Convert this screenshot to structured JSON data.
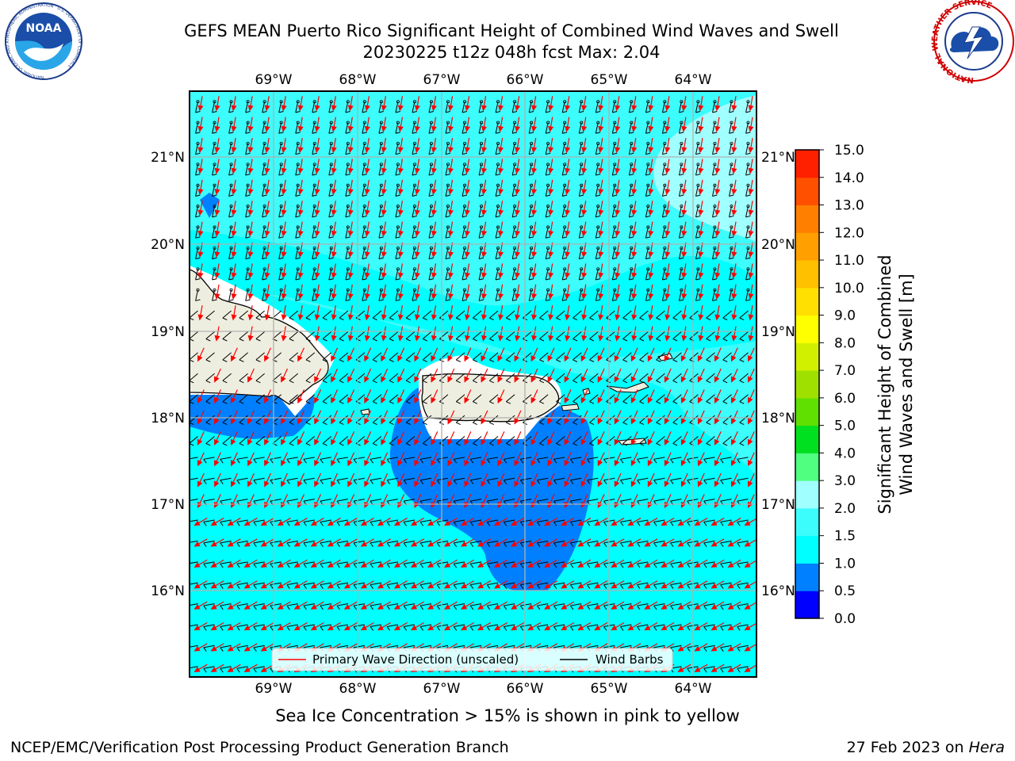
{
  "title": {
    "line1": "GEFS MEAN Puerto Rico Significant Height of Combined Wind Waves and Swell",
    "line2": "20230225 t12z 048h fcst   Max: 2.04"
  },
  "logos": {
    "left": {
      "name": "NOAA",
      "ring_text": "NATIONAL OCEANIC AND ATMOSPHERIC ADMINISTRATION · U.S. DEPARTMENT OF COMMERCE"
    },
    "right": {
      "ring_text": "NATIONAL WEATHER SERVICE"
    }
  },
  "map": {
    "lon_labels": [
      "69°W",
      "68°W",
      "67°W",
      "66°W",
      "65°W",
      "64°W"
    ],
    "lat_labels": [
      "21°N",
      "20°N",
      "19°N",
      "18°N",
      "17°N",
      "16°N"
    ],
    "lon_range": [
      -70,
      -63.25
    ],
    "lat_range": [
      15.0,
      21.75
    ],
    "grid": true,
    "colors": {
      "land": "#eeeee0",
      "ocean_1_1_5": "#00ffff",
      "ocean_1_5_2": "#3cfcfc",
      "ocean_2_3": "#a0ffff",
      "ocean_0_5_1": "#0080ff",
      "ocean_0_0_5": "#ffffff",
      "arrow": "#ff0000",
      "barb": "#000000"
    }
  },
  "legend": {
    "items": [
      {
        "label": "Primary Wave Direction (unscaled)",
        "color": "#ff0000"
      },
      {
        "label": "Wind Barbs",
        "color": "#000000"
      }
    ]
  },
  "colorbar": {
    "label_line1": "Significant Height of Combined",
    "label_line2": "Wind Waves and Swell [m]",
    "ticks": [
      "0.0",
      "0.5",
      "1.0",
      "1.5",
      "2.0",
      "3.0",
      "4.0",
      "5.0",
      "6.0",
      "7.0",
      "8.0",
      "9.0",
      "10.0",
      "11.0",
      "12.0",
      "13.0",
      "14.0",
      "15.0"
    ],
    "colors": [
      "#0000ff",
      "#0080ff",
      "#00ffff",
      "#3cfcfc",
      "#a0ffff",
      "#50ff80",
      "#00e020",
      "#60e000",
      "#a0e000",
      "#d0f000",
      "#ffff00",
      "#ffe000",
      "#ffc000",
      "#ffa000",
      "#ff8000",
      "#ff5000",
      "#ff2000"
    ]
  },
  "notes": {
    "sea_ice": "Sea Ice Concentration > 15% is shown in pink to yellow"
  },
  "footer": {
    "left": "NCEP/EMC/Verification Post Processing Product Generation Branch",
    "right_date": "27 Feb 2023 on ",
    "right_host": "Hera"
  }
}
